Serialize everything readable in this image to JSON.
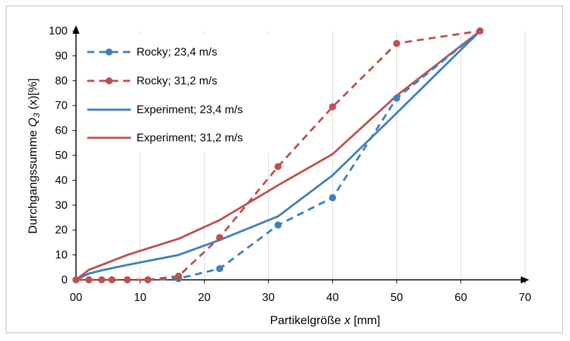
{
  "chart_data": {
    "type": "line",
    "title": "",
    "xlabel": {
      "prefix": "Partikelgröße ",
      "var": "x",
      "suffix": " [mm]"
    },
    "ylabel": {
      "prefix": "Durchgangssumme ",
      "var": "Q",
      "sub": "3",
      "suffix": " (x)[%]"
    },
    "xlim": [
      0,
      70
    ],
    "ylim": [
      0,
      100
    ],
    "x_ticks": [
      "00",
      "10",
      "20",
      "30",
      "40",
      "50",
      "60",
      "70"
    ],
    "x_tick_values": [
      0,
      10,
      20,
      30,
      40,
      50,
      60,
      70
    ],
    "y_ticks": [
      "0",
      "10",
      "20",
      "30",
      "40",
      "50",
      "60",
      "70",
      "80",
      "90",
      "100"
    ],
    "y_tick_values": [
      0,
      10,
      20,
      30,
      40,
      50,
      60,
      70,
      80,
      90,
      100
    ],
    "grid": "vertical",
    "legend_position": "top-left",
    "series": [
      {
        "name": "Rocky; 23,4 m/s",
        "color": "#3f7fbf",
        "style": "dashed",
        "markers": true,
        "points": [
          [
            0,
            0
          ],
          [
            2,
            0
          ],
          [
            4,
            0
          ],
          [
            5.6,
            0
          ],
          [
            8,
            0
          ],
          [
            11.2,
            0
          ],
          [
            16,
            0.5
          ],
          [
            22.4,
            4.5
          ],
          [
            31.5,
            22
          ],
          [
            40,
            33
          ],
          [
            50,
            73
          ],
          [
            63,
            100
          ]
        ]
      },
      {
        "name": "Rocky; 31,2 m/s",
        "color": "#c0504d",
        "style": "dashed",
        "markers": true,
        "points": [
          [
            0,
            0
          ],
          [
            2,
            0
          ],
          [
            4,
            0
          ],
          [
            5.6,
            0
          ],
          [
            8,
            0
          ],
          [
            11.2,
            0
          ],
          [
            16,
            1.5
          ],
          [
            22.4,
            17
          ],
          [
            31.5,
            45.5
          ],
          [
            40,
            69.5
          ],
          [
            50,
            95
          ],
          [
            63,
            100
          ]
        ]
      },
      {
        "name": "Experiment; 23,4 m/s",
        "color": "#3f7fbf",
        "style": "solid",
        "markers": false,
        "points": [
          [
            0,
            0
          ],
          [
            2,
            2.5
          ],
          [
            4,
            3.8
          ],
          [
            8,
            6
          ],
          [
            16,
            10
          ],
          [
            22.4,
            16
          ],
          [
            31.5,
            25.5
          ],
          [
            40,
            42
          ],
          [
            50,
            67
          ],
          [
            63,
            100
          ]
        ]
      },
      {
        "name": "Experiment; 31,2 m/s",
        "color": "#c0504d",
        "style": "solid",
        "markers": false,
        "points": [
          [
            0,
            0
          ],
          [
            2,
            4
          ],
          [
            4,
            6
          ],
          [
            8,
            10
          ],
          [
            16,
            16.5
          ],
          [
            22.4,
            24
          ],
          [
            31.5,
            38
          ],
          [
            40,
            50.5
          ],
          [
            50,
            74
          ],
          [
            63,
            100
          ]
        ]
      }
    ]
  }
}
